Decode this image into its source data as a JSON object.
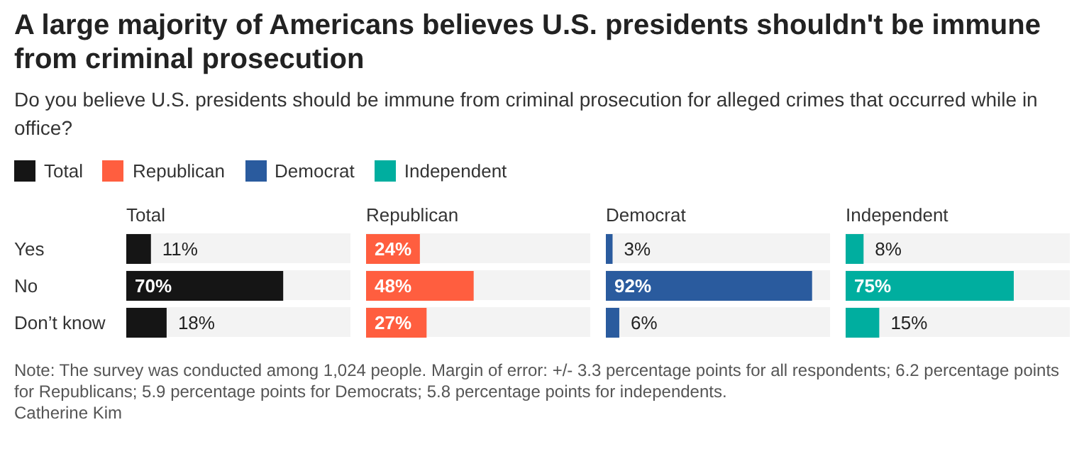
{
  "chart_data": [
    {
      "type": "bar",
      "orientation": "horizontal",
      "title": "A large majority of Americans believes U.S. presidents shouldn't be immune from criminal prosecution",
      "subtitle": "Do you believe U.S. presidents should be immune from criminal prosecution for alleged crimes that occurred while in office?",
      "legend": "top left",
      "categories": [
        "Yes",
        "No",
        "Don’t know"
      ],
      "xlim": [
        0,
        100
      ],
      "tick_labels": "y",
      "series": [
        {
          "name": "Total",
          "color": "#151515",
          "values": [
            11,
            70,
            18
          ],
          "value_labels": [
            "11%",
            "70%",
            "18%"
          ]
        }
      ],
      "annotations": [
        "Note: The survey was conducted among 1,024 people. Margin of error: +/- 3.3 percentage points for all respondents; 6.2 percentage points for Republicans; 5.9 percentage points for Democrats; 5.8 percentage points for independents.",
        "Catherine Kim"
      ]
    },
    {
      "type": "bar",
      "orientation": "horizontal",
      "xlim": [
        0,
        100
      ],
      "tick_labels": false,
      "series": [
        {
          "name": "Republican",
          "color": "#ff5e3f",
          "values": [
            24,
            48,
            27
          ],
          "value_labels": [
            "24%",
            "48%",
            "27%"
          ]
        }
      ]
    },
    {
      "type": "bar",
      "orientation": "horizontal",
      "xlim": [
        0,
        100
      ],
      "tick_labels": false,
      "series": [
        {
          "name": "Democrat",
          "color": "#2a5b9e",
          "values": [
            3,
            92,
            6
          ],
          "value_labels": [
            "3%",
            "92%",
            "6%"
          ]
        }
      ]
    },
    {
      "type": "bar",
      "orientation": "horizontal",
      "xlim": [
        0,
        100
      ],
      "tick_labels": false,
      "series": [
        {
          "name": "Independent",
          "color": "#00ae9f",
          "values": [
            8,
            75,
            15
          ],
          "value_labels": [
            "8%",
            "75%",
            "15%"
          ]
        }
      ]
    }
  ]
}
